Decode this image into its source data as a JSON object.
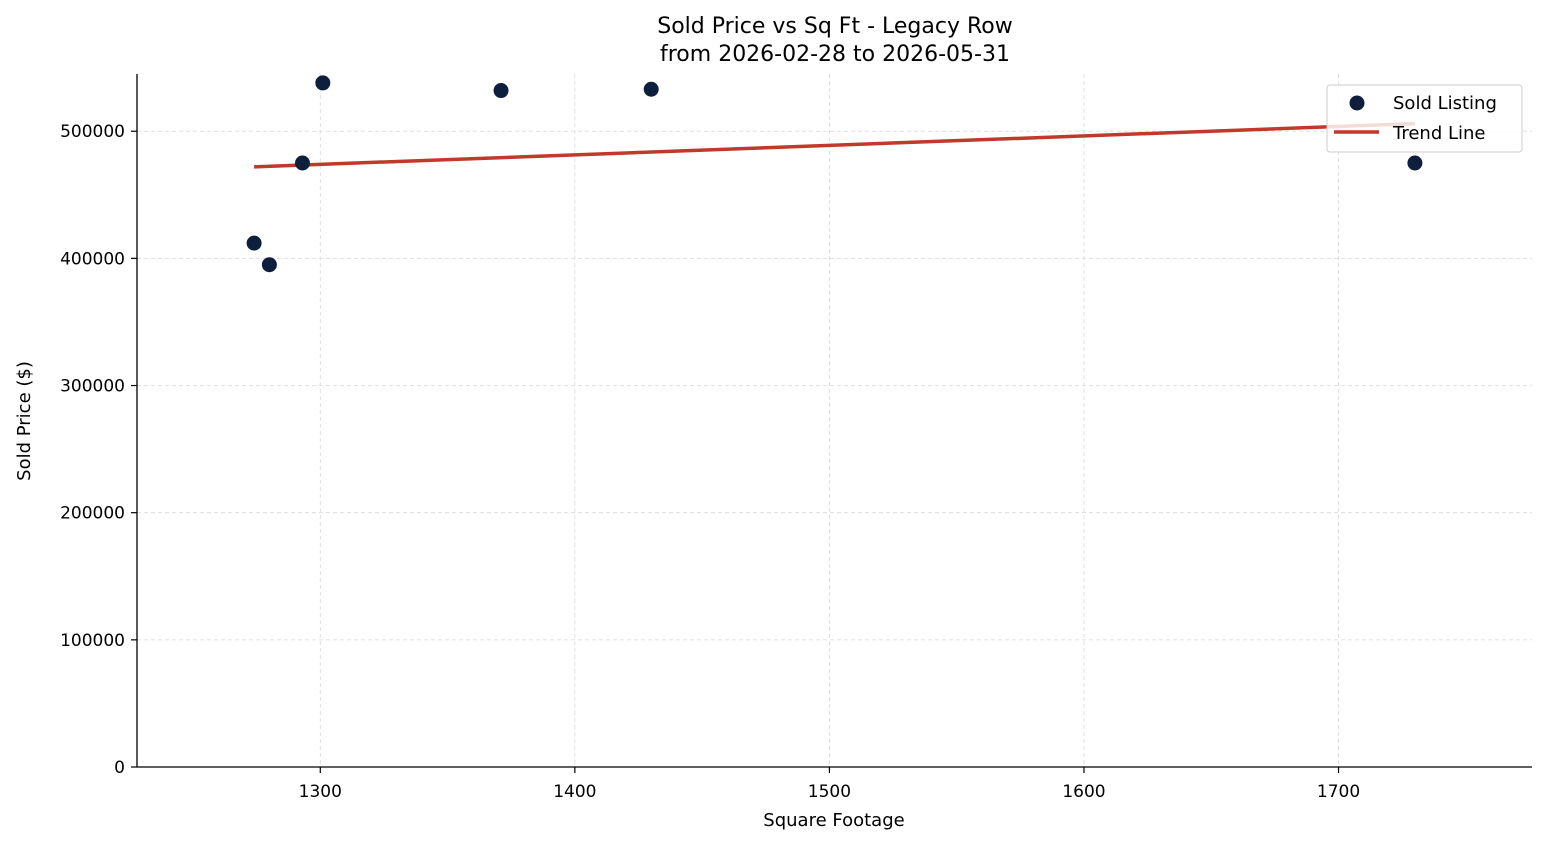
{
  "chart_data": {
    "type": "scatter",
    "title": "Sold Price vs Sq Ft - Legacy Row",
    "subtitle": "from 2026-02-28 to 2026-05-31",
    "xlabel": "Square Footage",
    "ylabel": "Sold Price ($)",
    "xlim": [
      1228,
      1776
    ],
    "ylim": [
      0,
      545000
    ],
    "xticks": [
      1300,
      1400,
      1500,
      1600,
      1700
    ],
    "yticks": [
      0,
      100000,
      200000,
      300000,
      400000,
      500000
    ],
    "grid": true,
    "legend_position": "top-right",
    "series": [
      {
        "name": "Sold Listing",
        "kind": "scatter",
        "color": "#0d1f3c",
        "points": [
          {
            "x": 1274,
            "y": 412000
          },
          {
            "x": 1280,
            "y": 395000
          },
          {
            "x": 1293,
            "y": 475000
          },
          {
            "x": 1301,
            "y": 538000
          },
          {
            "x": 1371,
            "y": 532000
          },
          {
            "x": 1430,
            "y": 533000
          },
          {
            "x": 1730,
            "y": 475000
          }
        ]
      },
      {
        "name": "Trend Line",
        "kind": "line",
        "color": "#c0392b",
        "points": [
          {
            "x": 1274,
            "y": 472000
          },
          {
            "x": 1730,
            "y": 506000
          }
        ]
      }
    ]
  }
}
